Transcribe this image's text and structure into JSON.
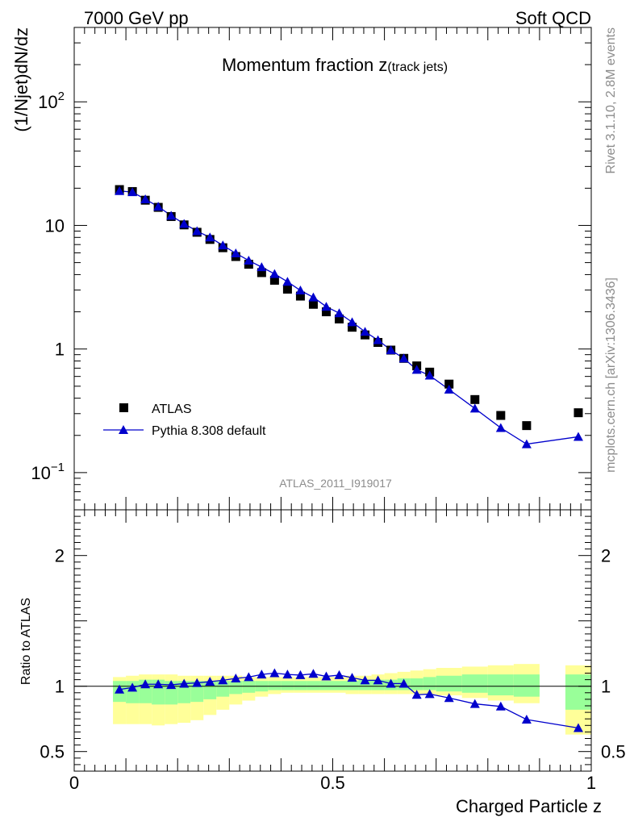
{
  "header": {
    "left": "7000 GeV pp",
    "right": "Soft QCD"
  },
  "side_labels": {
    "top": "Rivet 3.1.10,  2.8M events",
    "bottom": "mcplots.cern.ch [arXiv:1306.3436]"
  },
  "colors": {
    "mc": "#0000cc",
    "data": "#000000",
    "band_inner": "#99ff99",
    "band_outer": "#ffff99"
  },
  "chart_data": [
    {
      "type": "scatter",
      "panel": "main",
      "title_main": "Momentum fraction ",
      "title_var": "z",
      "title_sub": "(track jets)",
      "ylabel": "(1/Njet)dN/dz",
      "watermark": "ATLAS_2011_I919017",
      "yscale": "log",
      "xlim": [
        0,
        1
      ],
      "ylim": [
        0.05,
        400
      ],
      "y_ticks": [
        {
          "value": 0.1,
          "base": "10",
          "exp": "−1"
        },
        {
          "value": 1,
          "base": "1",
          "exp": ""
        },
        {
          "value": 10,
          "base": "10",
          "exp": ""
        },
        {
          "value": 100,
          "base": "10",
          "exp": "2"
        }
      ],
      "legend": {
        "position": "lower-left",
        "data_label": "ATLAS",
        "mc_label": "Pythia 8.308 default"
      },
      "series": [
        {
          "name": "ATLAS",
          "marker": "square",
          "x": [
            0.0875,
            0.1125,
            0.1375,
            0.1625,
            0.1875,
            0.2125,
            0.2375,
            0.2625,
            0.2875,
            0.3125,
            0.3375,
            0.3625,
            0.3875,
            0.4125,
            0.4375,
            0.4625,
            0.4875,
            0.5125,
            0.5375,
            0.5625,
            0.5875,
            0.6125,
            0.6375,
            0.6625,
            0.6875,
            0.725,
            0.775,
            0.825,
            0.875,
            0.975
          ],
          "y": [
            19.5,
            18.8,
            16.0,
            14.0,
            11.8,
            10.1,
            8.8,
            7.7,
            6.6,
            5.6,
            4.85,
            4.15,
            3.6,
            3.05,
            2.68,
            2.3,
            2.0,
            1.75,
            1.5,
            1.3,
            1.13,
            0.98,
            0.84,
            0.73,
            0.65,
            0.52,
            0.39,
            0.29,
            0.24,
            0.305
          ]
        },
        {
          "name": "Pythia 8.308 default",
          "marker": "triangle",
          "x": [
            0.0875,
            0.1125,
            0.1375,
            0.1625,
            0.1875,
            0.2125,
            0.2375,
            0.2625,
            0.2875,
            0.3125,
            0.3375,
            0.3625,
            0.3875,
            0.4125,
            0.4375,
            0.4625,
            0.4875,
            0.5125,
            0.5375,
            0.5625,
            0.5875,
            0.6125,
            0.6375,
            0.6625,
            0.6875,
            0.725,
            0.775,
            0.825,
            0.875,
            0.975
          ],
          "y": [
            19.0,
            18.6,
            16.3,
            14.2,
            12.0,
            10.3,
            9.0,
            8.0,
            6.9,
            5.95,
            5.2,
            4.6,
            4.05,
            3.5,
            2.98,
            2.62,
            2.2,
            1.95,
            1.65,
            1.38,
            1.18,
            0.98,
            0.84,
            0.68,
            0.61,
            0.47,
            0.33,
            0.23,
            0.17,
            0.195
          ]
        }
      ]
    },
    {
      "type": "line",
      "panel": "ratio",
      "ylabel": "Ratio to ATLAS",
      "xlabel": "Charged Particle z",
      "xlim": [
        0,
        1
      ],
      "ylim": [
        0.35,
        2.35
      ],
      "x_ticks": [
        {
          "value": 0,
          "label": "0"
        },
        {
          "value": 0.5,
          "label": "0.5"
        },
        {
          "value": 1,
          "label": "1"
        }
      ],
      "y_ticks": [
        {
          "value": 0.5,
          "label": "0.5"
        },
        {
          "value": 1,
          "label": "1"
        },
        {
          "value": 2,
          "label": "2"
        }
      ],
      "bins_lo": [
        0.075,
        0.1,
        0.125,
        0.15,
        0.175,
        0.2,
        0.225,
        0.25,
        0.275,
        0.3,
        0.325,
        0.35,
        0.375,
        0.4,
        0.425,
        0.45,
        0.475,
        0.5,
        0.525,
        0.55,
        0.575,
        0.6,
        0.625,
        0.65,
        0.675,
        0.7,
        0.75,
        0.8,
        0.85,
        0.95
      ],
      "bins_hi": [
        0.1,
        0.125,
        0.15,
        0.175,
        0.2,
        0.225,
        0.25,
        0.275,
        0.3,
        0.325,
        0.35,
        0.375,
        0.4,
        0.425,
        0.45,
        0.475,
        0.5,
        0.525,
        0.55,
        0.575,
        0.6,
        0.625,
        0.65,
        0.675,
        0.7,
        0.75,
        0.8,
        0.85,
        0.9,
        1.0
      ],
      "band_inner": {
        "lo": [
          0.88,
          0.87,
          0.87,
          0.86,
          0.86,
          0.87,
          0.88,
          0.9,
          0.92,
          0.94,
          0.95,
          0.96,
          0.97,
          0.97,
          0.97,
          0.97,
          0.97,
          0.97,
          0.97,
          0.97,
          0.97,
          0.97,
          0.97,
          0.97,
          0.97,
          0.96,
          0.95,
          0.93,
          0.92,
          0.82
        ],
        "hi": [
          1.04,
          1.04,
          1.05,
          1.05,
          1.04,
          1.04,
          1.04,
          1.04,
          1.04,
          1.04,
          1.04,
          1.04,
          1.04,
          1.04,
          1.04,
          1.04,
          1.04,
          1.04,
          1.04,
          1.05,
          1.05,
          1.05,
          1.06,
          1.06,
          1.07,
          1.08,
          1.09,
          1.09,
          1.09,
          1.09
        ]
      },
      "band_outer": {
        "lo": [
          0.71,
          0.71,
          0.71,
          0.7,
          0.71,
          0.72,
          0.74,
          0.78,
          0.82,
          0.86,
          0.89,
          0.92,
          0.94,
          0.95,
          0.95,
          0.95,
          0.95,
          0.95,
          0.94,
          0.94,
          0.94,
          0.94,
          0.94,
          0.94,
          0.94,
          0.93,
          0.91,
          0.89,
          0.87,
          0.63
        ],
        "hi": [
          1.07,
          1.08,
          1.09,
          1.09,
          1.09,
          1.08,
          1.08,
          1.08,
          1.08,
          1.08,
          1.07,
          1.07,
          1.07,
          1.07,
          1.07,
          1.07,
          1.07,
          1.07,
          1.08,
          1.08,
          1.09,
          1.1,
          1.11,
          1.12,
          1.13,
          1.14,
          1.15,
          1.16,
          1.17,
          1.16
        ]
      },
      "series": [
        {
          "name": "Pythia 8.308 default",
          "x": [
            0.0875,
            0.1125,
            0.1375,
            0.1625,
            0.1875,
            0.2125,
            0.2375,
            0.2625,
            0.2875,
            0.3125,
            0.3375,
            0.3625,
            0.3875,
            0.4125,
            0.4375,
            0.4625,
            0.4875,
            0.5125,
            0.5375,
            0.5625,
            0.5875,
            0.6125,
            0.6375,
            0.6625,
            0.6875,
            0.725,
            0.775,
            0.825,
            0.875,
            0.975
          ],
          "y": [
            0.975,
            0.99,
            1.015,
            1.015,
            1.01,
            1.02,
            1.025,
            1.035,
            1.045,
            1.06,
            1.07,
            1.09,
            1.1,
            1.09,
            1.085,
            1.095,
            1.075,
            1.085,
            1.065,
            1.045,
            1.045,
            1.02,
            1.02,
            0.935,
            0.94,
            0.91,
            0.865,
            0.845,
            0.745,
            0.68
          ],
          "err": [
            0.008,
            0.008,
            0.008,
            0.008,
            0.008,
            0.008,
            0.008,
            0.008,
            0.008,
            0.008,
            0.009,
            0.009,
            0.009,
            0.01,
            0.01,
            0.01,
            0.011,
            0.012,
            0.012,
            0.013,
            0.014,
            0.015,
            0.016,
            0.017,
            0.018,
            0.015,
            0.018,
            0.021,
            0.025,
            0.025
          ]
        }
      ],
      "reference_line": 1
    }
  ]
}
